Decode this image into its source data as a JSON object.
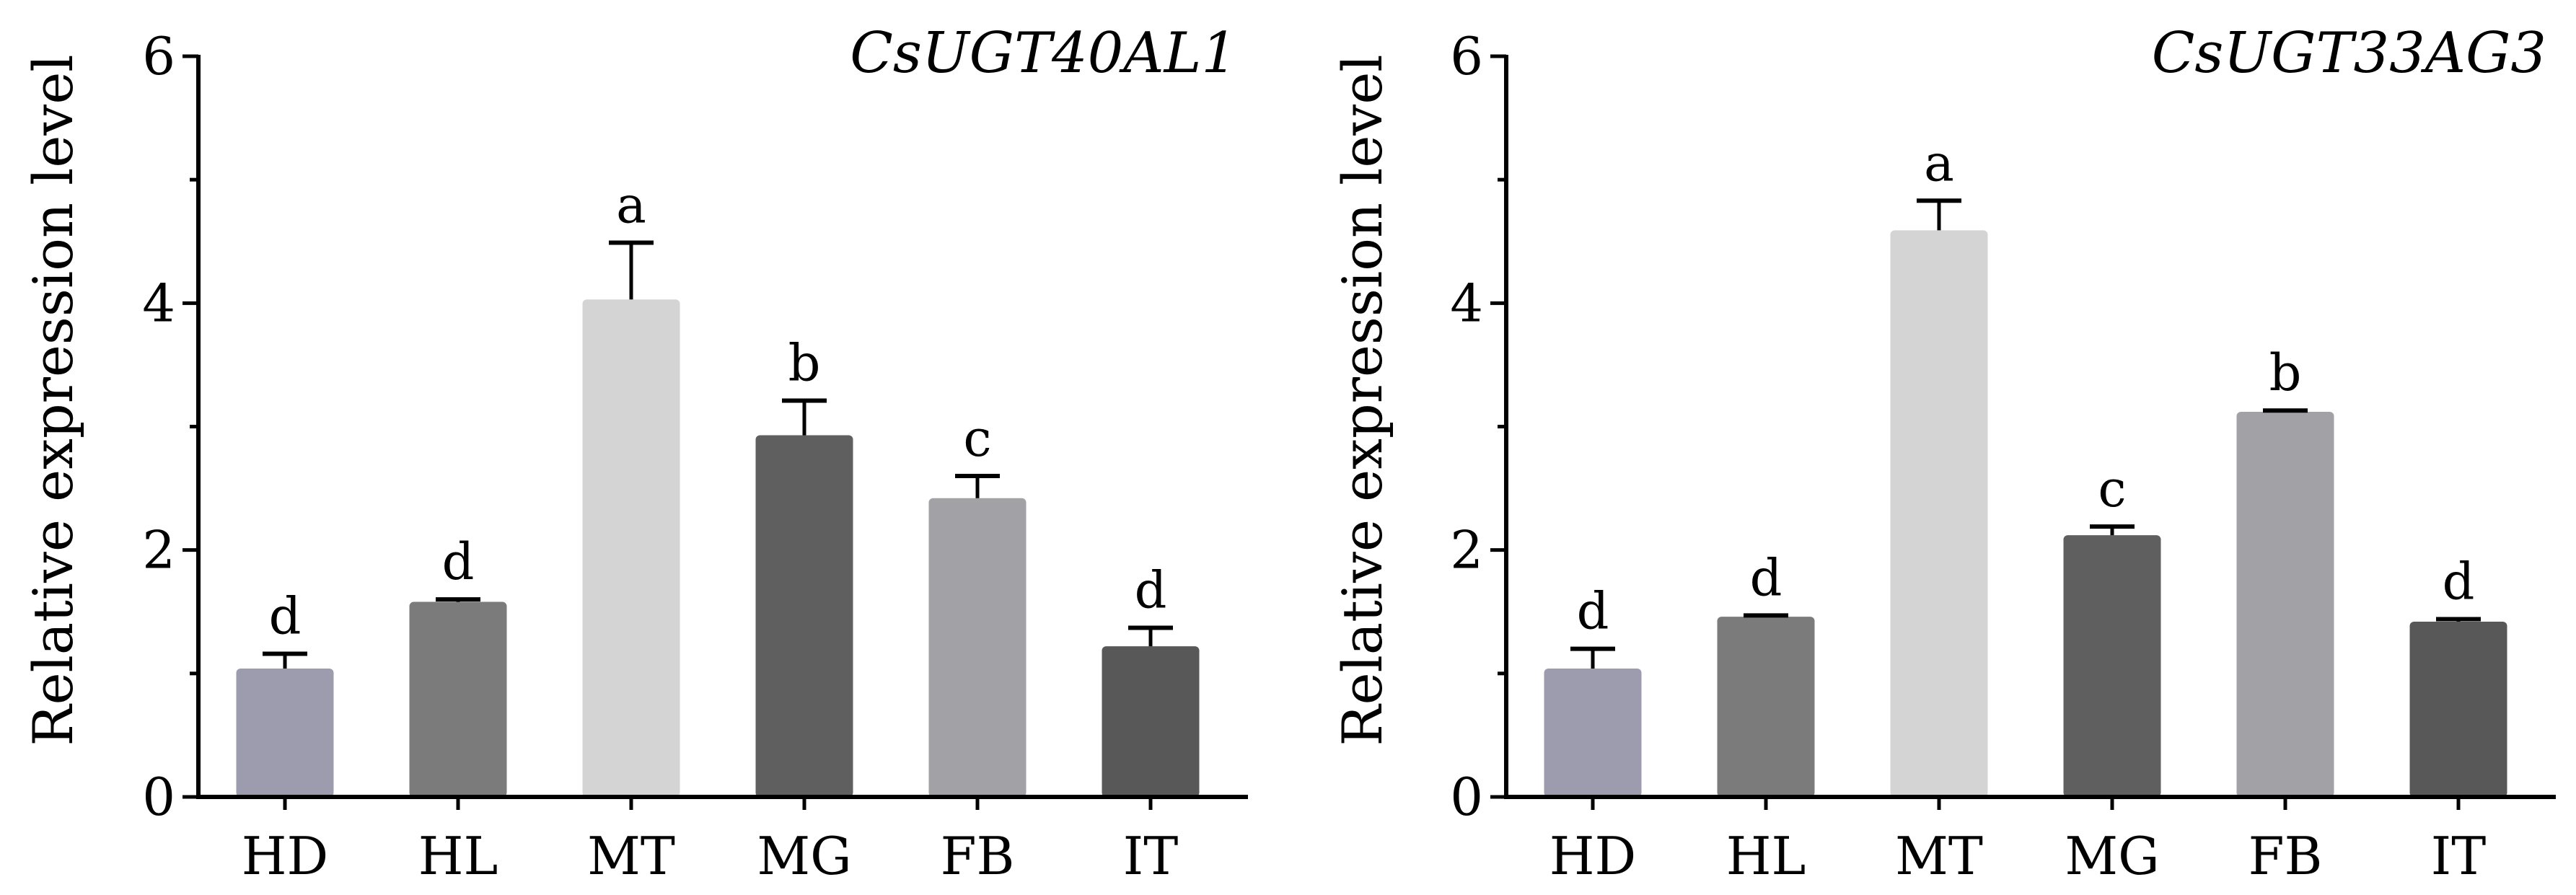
{
  "chart_data": [
    {
      "type": "bar",
      "title": "CsUGT40AL1",
      "ylabel": "Relative expression level",
      "xlabel": "",
      "ylim": [
        0,
        6
      ],
      "yticks": [
        0,
        2,
        4,
        6
      ],
      "categories": [
        "HD",
        "HL",
        "MT",
        "MG",
        "FB",
        "IT"
      ],
      "values": [
        1.04,
        1.58,
        4.03,
        2.93,
        2.42,
        1.22
      ],
      "errors": [
        0.12,
        0.02,
        0.46,
        0.28,
        0.18,
        0.15
      ],
      "letters": [
        "d",
        "d",
        "a",
        "b",
        "c",
        "d"
      ],
      "colors": [
        "#9c9cae",
        "#7b7b7b",
        "#d4d4d4",
        "#5f5f5f",
        "#a2a1a6",
        "#585858"
      ]
    },
    {
      "type": "bar",
      "title": "CsUGT33AG3",
      "ylabel": "Relative expression level",
      "xlabel": "",
      "ylim": [
        0,
        6
      ],
      "yticks": [
        0,
        2,
        4,
        6
      ],
      "categories": [
        "HD",
        "HL",
        "MT",
        "MG",
        "FB",
        "IT"
      ],
      "values": [
        1.04,
        1.46,
        4.59,
        2.12,
        3.12,
        1.42
      ],
      "errors": [
        0.16,
        0.01,
        0.24,
        0.07,
        0.01,
        0.02
      ],
      "letters": [
        "d",
        "d",
        "a",
        "c",
        "b",
        "d"
      ],
      "colors": [
        "#9c9cae",
        "#7b7b7b",
        "#d4d4d4",
        "#5f5f5f",
        "#a2a1a6",
        "#585858"
      ]
    }
  ]
}
